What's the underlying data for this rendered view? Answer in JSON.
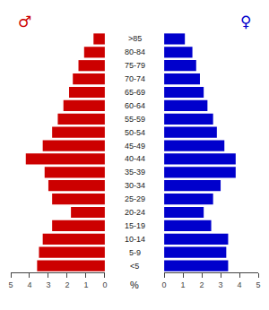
{
  "chart_data": {
    "type": "bar",
    "orientation": "horizontal",
    "categories": [
      ">85",
      "80-84",
      "75-79",
      "70-74",
      "65-69",
      "60-64",
      "55-59",
      "50-54",
      "45-49",
      "40-44",
      "35-39",
      "30-34",
      "25-29",
      "20-24",
      "15-19",
      "10-14",
      "5-9",
      "<5"
    ],
    "series": [
      {
        "name": "♂",
        "color": "#cc0000",
        "values": [
          0.6,
          1.1,
          1.4,
          1.7,
          1.9,
          2.2,
          2.5,
          2.8,
          3.3,
          4.2,
          3.2,
          3.0,
          2.8,
          1.8,
          2.8,
          3.3,
          3.5,
          3.6
        ]
      },
      {
        "name": "♀",
        "color": "#0000cc",
        "values": [
          1.1,
          1.5,
          1.7,
          1.9,
          2.1,
          2.3,
          2.6,
          2.8,
          3.2,
          3.8,
          3.8,
          3.0,
          2.6,
          2.1,
          2.5,
          3.4,
          3.3,
          3.4
        ]
      }
    ],
    "xlabel": "%",
    "xlim": [
      0,
      5
    ],
    "xticks": [
      0,
      1,
      2,
      3,
      4,
      5
    ],
    "grid": false
  }
}
